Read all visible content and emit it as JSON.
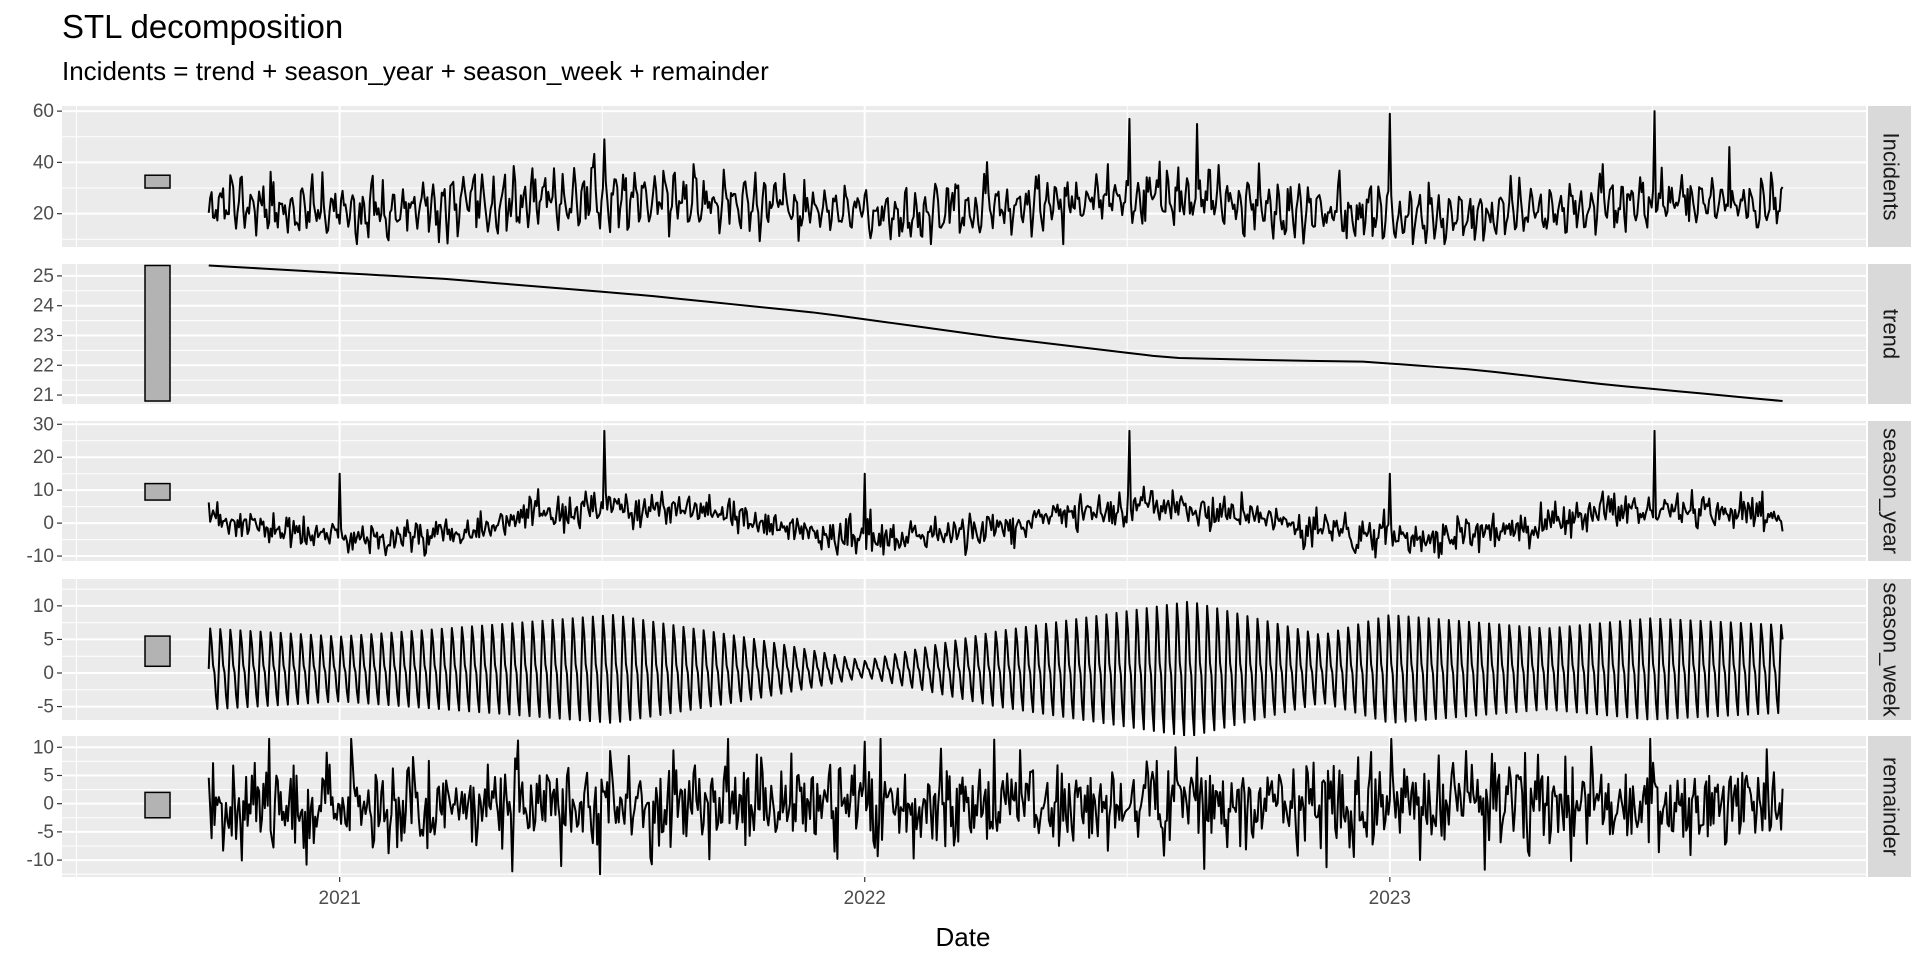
{
  "chart_data": {
    "type": "line",
    "title": "STL decomposition",
    "subtitle": "Incidents = trend + season_year + season_week + remainder",
    "xlabel": "Date",
    "x_range": [
      "2020-06-22",
      "2023-11-28"
    ],
    "x_ticks": [
      {
        "date": "2021-01-01",
        "label": "2021"
      },
      {
        "date": "2022-01-01",
        "label": "2022"
      },
      {
        "date": "2023-01-01",
        "label": "2023"
      }
    ],
    "series_start": "2020-10-02",
    "series_end": "2023-10-01",
    "panels": [
      {
        "name": "Incidents",
        "ylim": [
          7,
          62
        ],
        "y_ticks": [
          20,
          40,
          60
        ],
        "scale_bar": [
          30,
          35
        ],
        "kind": "noisy",
        "params": {
          "base_start": 24,
          "base_end": 22,
          "seasonal_amp": 3,
          "weekly_amp": 6,
          "noise": 4,
          "seed": 11
        },
        "spikes": [
          {
            "date": "2021-07-04",
            "value": 49
          },
          {
            "date": "2022-07-04",
            "value": 57
          },
          {
            "date": "2022-08-20",
            "value": 55
          },
          {
            "date": "2023-01-01",
            "value": 59
          },
          {
            "date": "2023-07-04",
            "value": 60
          },
          {
            "date": "2023-08-25",
            "value": 46
          }
        ]
      },
      {
        "name": "trend",
        "ylim": [
          20.7,
          25.4
        ],
        "y_ticks": [
          21,
          22,
          23,
          24,
          25
        ],
        "scale_bar": [
          20.8,
          25.35
        ],
        "kind": "trend",
        "points": [
          {
            "date": "2020-10-02",
            "value": 25.35
          },
          {
            "date": "2021-03-15",
            "value": 24.9
          },
          {
            "date": "2021-08-01",
            "value": 24.35
          },
          {
            "date": "2021-12-01",
            "value": 23.75
          },
          {
            "date": "2022-04-01",
            "value": 22.95
          },
          {
            "date": "2022-08-01",
            "value": 22.25
          },
          {
            "date": "2022-11-01",
            "value": 22.15
          },
          {
            "date": "2022-12-15",
            "value": 22.12
          },
          {
            "date": "2023-03-01",
            "value": 21.85
          },
          {
            "date": "2023-06-01",
            "value": 21.35
          },
          {
            "date": "2023-10-01",
            "value": 20.8
          }
        ]
      },
      {
        "name": "season_year",
        "ylim": [
          -11.5,
          31
        ],
        "y_ticks": [
          -10,
          0,
          10,
          20,
          30
        ],
        "scale_bar": [
          7,
          12
        ],
        "kind": "noisy",
        "params": {
          "base_start": 0,
          "base_end": 0,
          "seasonal_amp": 4.5,
          "weekly_amp": 0,
          "noise": 2.5,
          "seed": 23
        },
        "spikes": [
          {
            "date": "2021-01-01",
            "value": 15
          },
          {
            "date": "2021-07-04",
            "value": 28
          },
          {
            "date": "2022-01-01",
            "value": 15
          },
          {
            "date": "2022-07-04",
            "value": 28
          },
          {
            "date": "2023-01-01",
            "value": 15
          },
          {
            "date": "2023-07-04",
            "value": 28
          }
        ]
      },
      {
        "name": "season_week",
        "ylim": [
          -7,
          14
        ],
        "y_ticks": [
          -5,
          0,
          5,
          10
        ],
        "scale_bar": [
          1,
          5.5
        ],
        "kind": "weekly",
        "envelope": [
          {
            "date": "2020-10-02",
            "amp": 6
          },
          {
            "date": "2021-01-01",
            "amp": 4.8
          },
          {
            "date": "2021-04-15",
            "amp": 6.5
          },
          {
            "date": "2021-07-10",
            "amp": 8
          },
          {
            "date": "2021-10-15",
            "amp": 4.5
          },
          {
            "date": "2022-01-01",
            "amp": 1.2
          },
          {
            "date": "2022-04-01",
            "amp": 5.5
          },
          {
            "date": "2022-08-15",
            "amp": 10
          },
          {
            "date": "2022-11-15",
            "amp": 5
          },
          {
            "date": "2023-01-01",
            "amp": 8
          },
          {
            "date": "2023-04-20",
            "amp": 6
          },
          {
            "date": "2023-07-01",
            "amp": 7.5
          },
          {
            "date": "2023-10-01",
            "amp": 6.5
          }
        ]
      },
      {
        "name": "remainder",
        "ylim": [
          -13,
          12
        ],
        "y_ticks": [
          -10,
          -5,
          0,
          5,
          10
        ],
        "scale_bar": [
          -2.5,
          2
        ],
        "kind": "noisy",
        "params": {
          "base_start": 0,
          "base_end": 0,
          "seasonal_amp": 0,
          "weekly_amp": 0,
          "noise": 4,
          "seed": 37
        },
        "spikes": [
          {
            "date": "2021-07-01",
            "value": -12.5
          },
          {
            "date": "2021-05-01",
            "value": -12
          },
          {
            "date": "2022-01-01",
            "value": 11
          },
          {
            "date": "2023-01-02",
            "value": 11.5
          },
          {
            "date": "2023-07-01",
            "value": 11.5
          },
          {
            "date": "2022-08-05",
            "value": 10
          }
        ]
      }
    ]
  }
}
